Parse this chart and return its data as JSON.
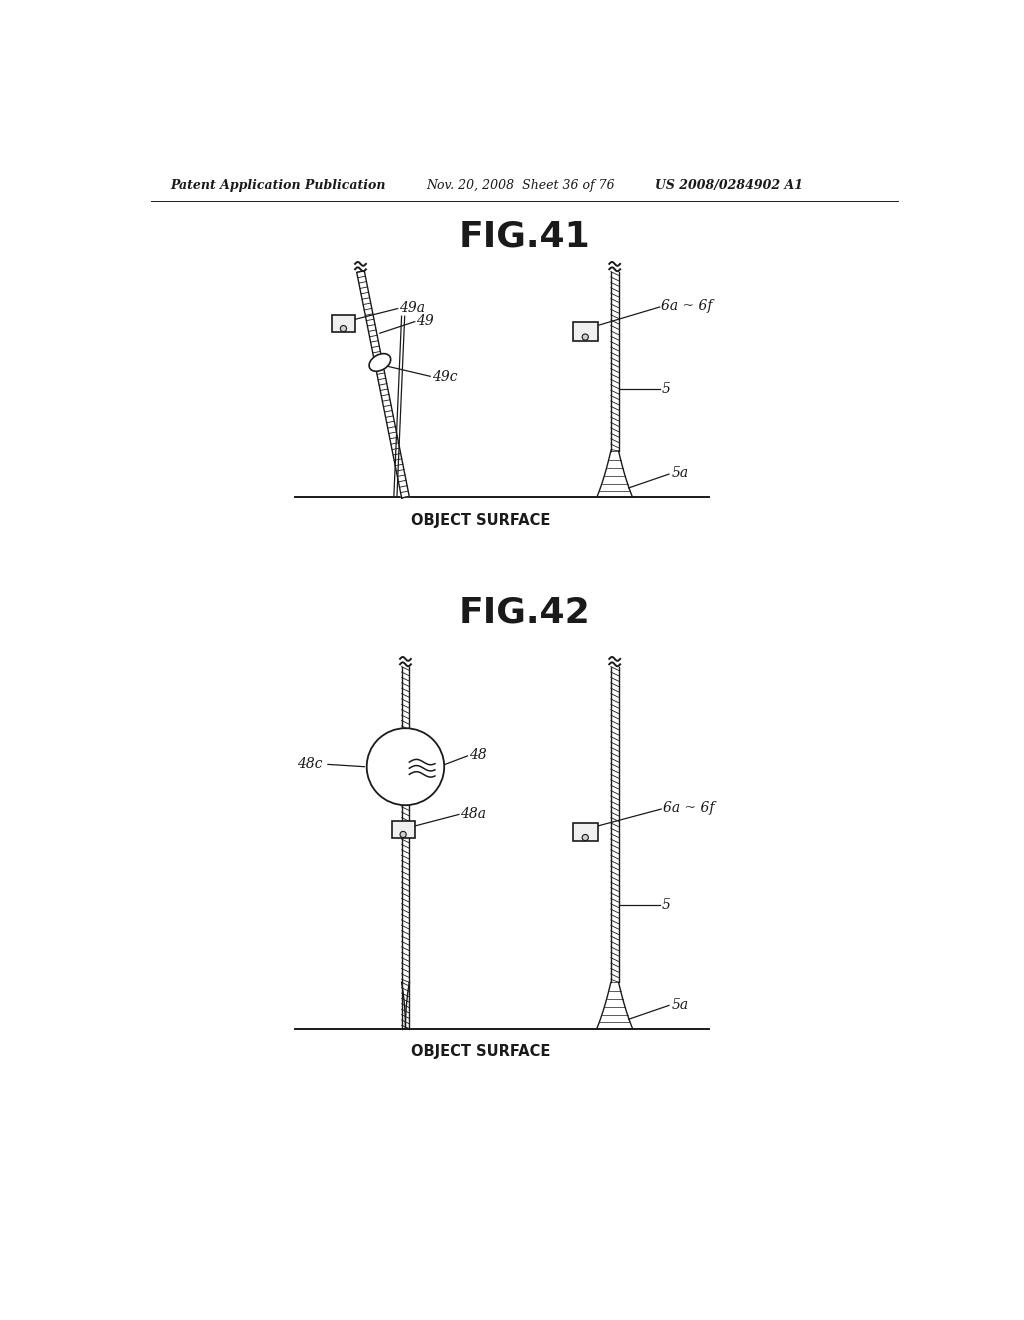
{
  "bg_color": "#ffffff",
  "header_text": "Patent Application Publication",
  "header_date": "Nov. 20, 2008  Sheet 36 of 76",
  "header_patent": "US 2008/0284902 A1",
  "fig41_title": "FIG.41",
  "fig42_title": "FIG.42",
  "object_surface_label": "OBJECT SURFACE",
  "line_color": "#1a1a1a",
  "lw": 1.4
}
